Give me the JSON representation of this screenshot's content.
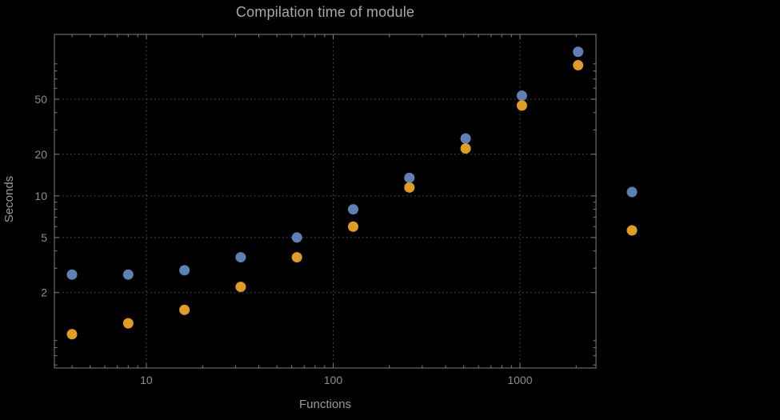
{
  "title": "Compilation time of module",
  "colors": {
    "background": "#000000",
    "frame": "#7f7f7f",
    "grid": "#565656",
    "tick_text": "#8d8d8d",
    "title_text": "#a8a8a8",
    "axis_label_text": "#9a9a9a"
  },
  "chart_data": {
    "type": "scatter",
    "title": "Compilation time of module",
    "xlabel": "Functions",
    "ylabel": "Seconds",
    "xscale": "log",
    "yscale": "log",
    "xlim": [
      3.22,
      2553
    ],
    "ylim": [
      0.57,
      147
    ],
    "x_ticks": [
      10,
      100,
      1000
    ],
    "y_ticks": [
      2,
      5,
      10,
      20,
      50
    ],
    "grid": "dotted",
    "x": [
      4,
      8,
      16,
      32,
      64,
      128,
      256,
      512,
      1024,
      2048
    ],
    "series": [
      {
        "name": "blue",
        "color": "#5e81b5",
        "values": [
          2.7,
          2.7,
          2.9,
          3.6,
          5.0,
          8.0,
          13.5,
          26,
          53,
          110
        ]
      },
      {
        "name": "orange",
        "color": "#e19c24",
        "values": [
          1.0,
          1.2,
          1.5,
          2.2,
          3.6,
          6.0,
          11.5,
          22,
          45,
          88
        ]
      }
    ],
    "legend": {
      "position": "outside-right",
      "labels_visible": false,
      "markers": [
        "blue",
        "orange"
      ]
    }
  }
}
